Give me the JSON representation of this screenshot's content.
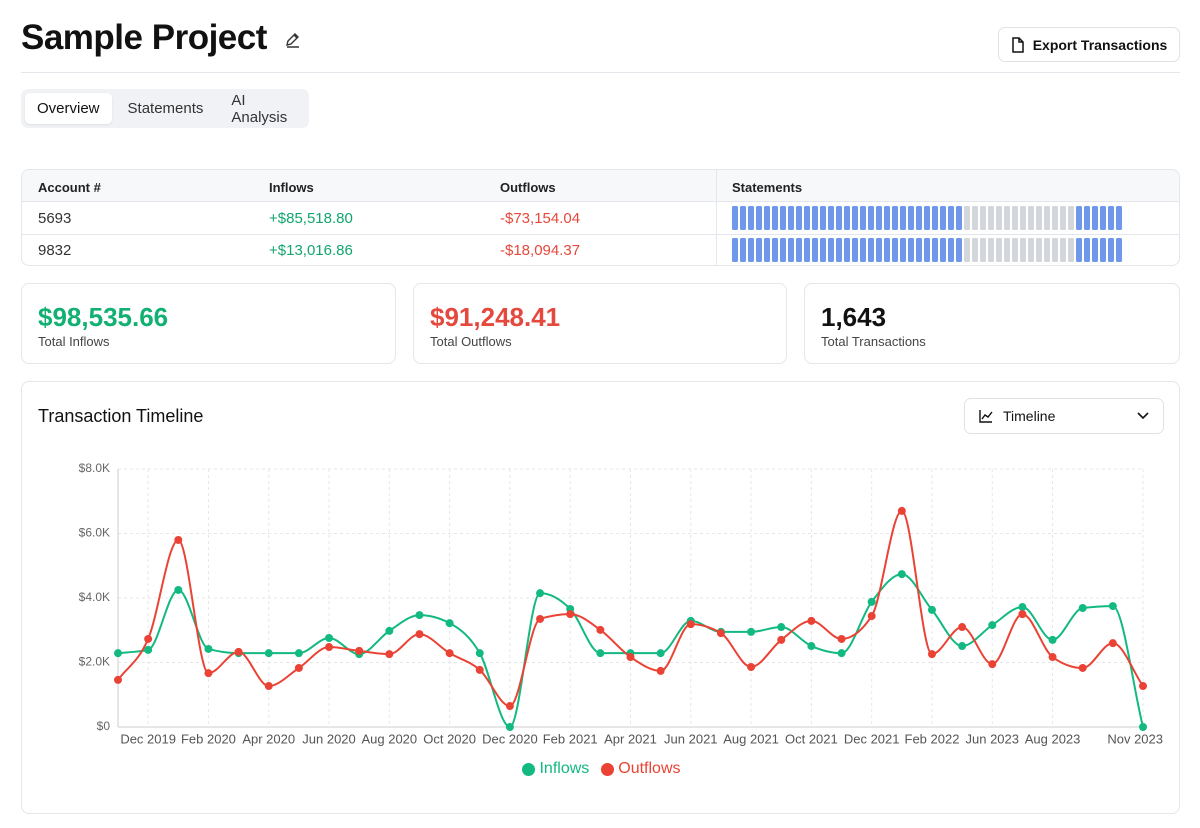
{
  "header": {
    "title": "Sample Project",
    "export_button": "Export Transactions"
  },
  "tabs": [
    "Overview",
    "Statements",
    "AI Analysis"
  ],
  "table": {
    "columns": [
      "Account #",
      "Inflows",
      "Outflows",
      "Statements"
    ],
    "rows": [
      [
        "5693",
        "+$85,518.80",
        "-$73,154.04"
      ],
      [
        "9832",
        "+$13,016.86",
        "-$18,094.37"
      ]
    ],
    "statements": [
      [
        {
          "color": "#6f98ea",
          "count": 29
        },
        {
          "color": "#d3d6db",
          "count": 14
        },
        {
          "color": "#6f98ea",
          "count": 6
        }
      ],
      [
        {
          "color": "#6f98ea",
          "count": 29
        },
        {
          "color": "#d3d6db",
          "count": 14
        },
        {
          "color": "#6f98ea",
          "count": 6
        }
      ]
    ]
  },
  "stats": [
    {
      "value": "$98,535.66",
      "label": "Total Inflows"
    },
    {
      "value": "$91,248.41",
      "label": "Total Outflows"
    },
    {
      "value": "1,643",
      "label": "Total Transactions"
    }
  ],
  "timeline_card": {
    "view_select": "Timeline"
  },
  "chart_data": {
    "type": "line",
    "title": "Transaction Timeline",
    "categories": [
      null,
      "Dec 2019",
      null,
      "Feb 2020",
      null,
      "Apr 2020",
      null,
      "Jun 2020",
      null,
      "Aug 2020",
      null,
      "Oct 2020",
      null,
      "Dec 2020",
      null,
      "Feb 2021",
      null,
      "Apr 2021",
      null,
      "Jun 2021",
      null,
      "Aug 2021",
      null,
      "Oct 2021",
      null,
      "Dec 2021",
      null,
      "Feb 2022",
      null,
      "Jun 2023",
      null,
      "Aug 2023",
      null,
      null,
      "Nov 2023"
    ],
    "series": [
      {
        "name": "Inflows",
        "color": "#12b981",
        "values": [
          2290,
          2390,
          4250,
          2420,
          2290,
          2290,
          2290,
          2760,
          2260,
          2980,
          3470,
          3220,
          2290,
          0,
          4150,
          3660,
          2290,
          2290,
          2290,
          3290,
          2950,
          2950,
          3100,
          2510,
          2290,
          3880,
          4740,
          3630,
          2510,
          3160,
          3720,
          2700,
          3690,
          3750,
          0
        ]
      },
      {
        "name": "Outflows",
        "color": "#ea4335",
        "values": [
          1460,
          2730,
          5800,
          1670,
          2330,
          1270,
          1830,
          2480,
          2360,
          2260,
          2880,
          2290,
          1770,
          650,
          3350,
          3500,
          3010,
          2170,
          1740,
          3190,
          2910,
          1860,
          2700,
          3290,
          2730,
          3440,
          6700,
          2260,
          3100,
          1950,
          3500,
          2170,
          1830,
          2600,
          1270
        ]
      }
    ],
    "ylim": [
      0,
      8000
    ],
    "yticks": [
      {
        "value": 0,
        "label": "$0"
      },
      {
        "value": 2000,
        "label": "$2.0K"
      },
      {
        "value": 4000,
        "label": "$4.0K"
      },
      {
        "value": 6000,
        "label": "$6.0K"
      },
      {
        "value": 8000,
        "label": "$8.0K"
      }
    ],
    "grid": true,
    "legend": "bottom"
  }
}
